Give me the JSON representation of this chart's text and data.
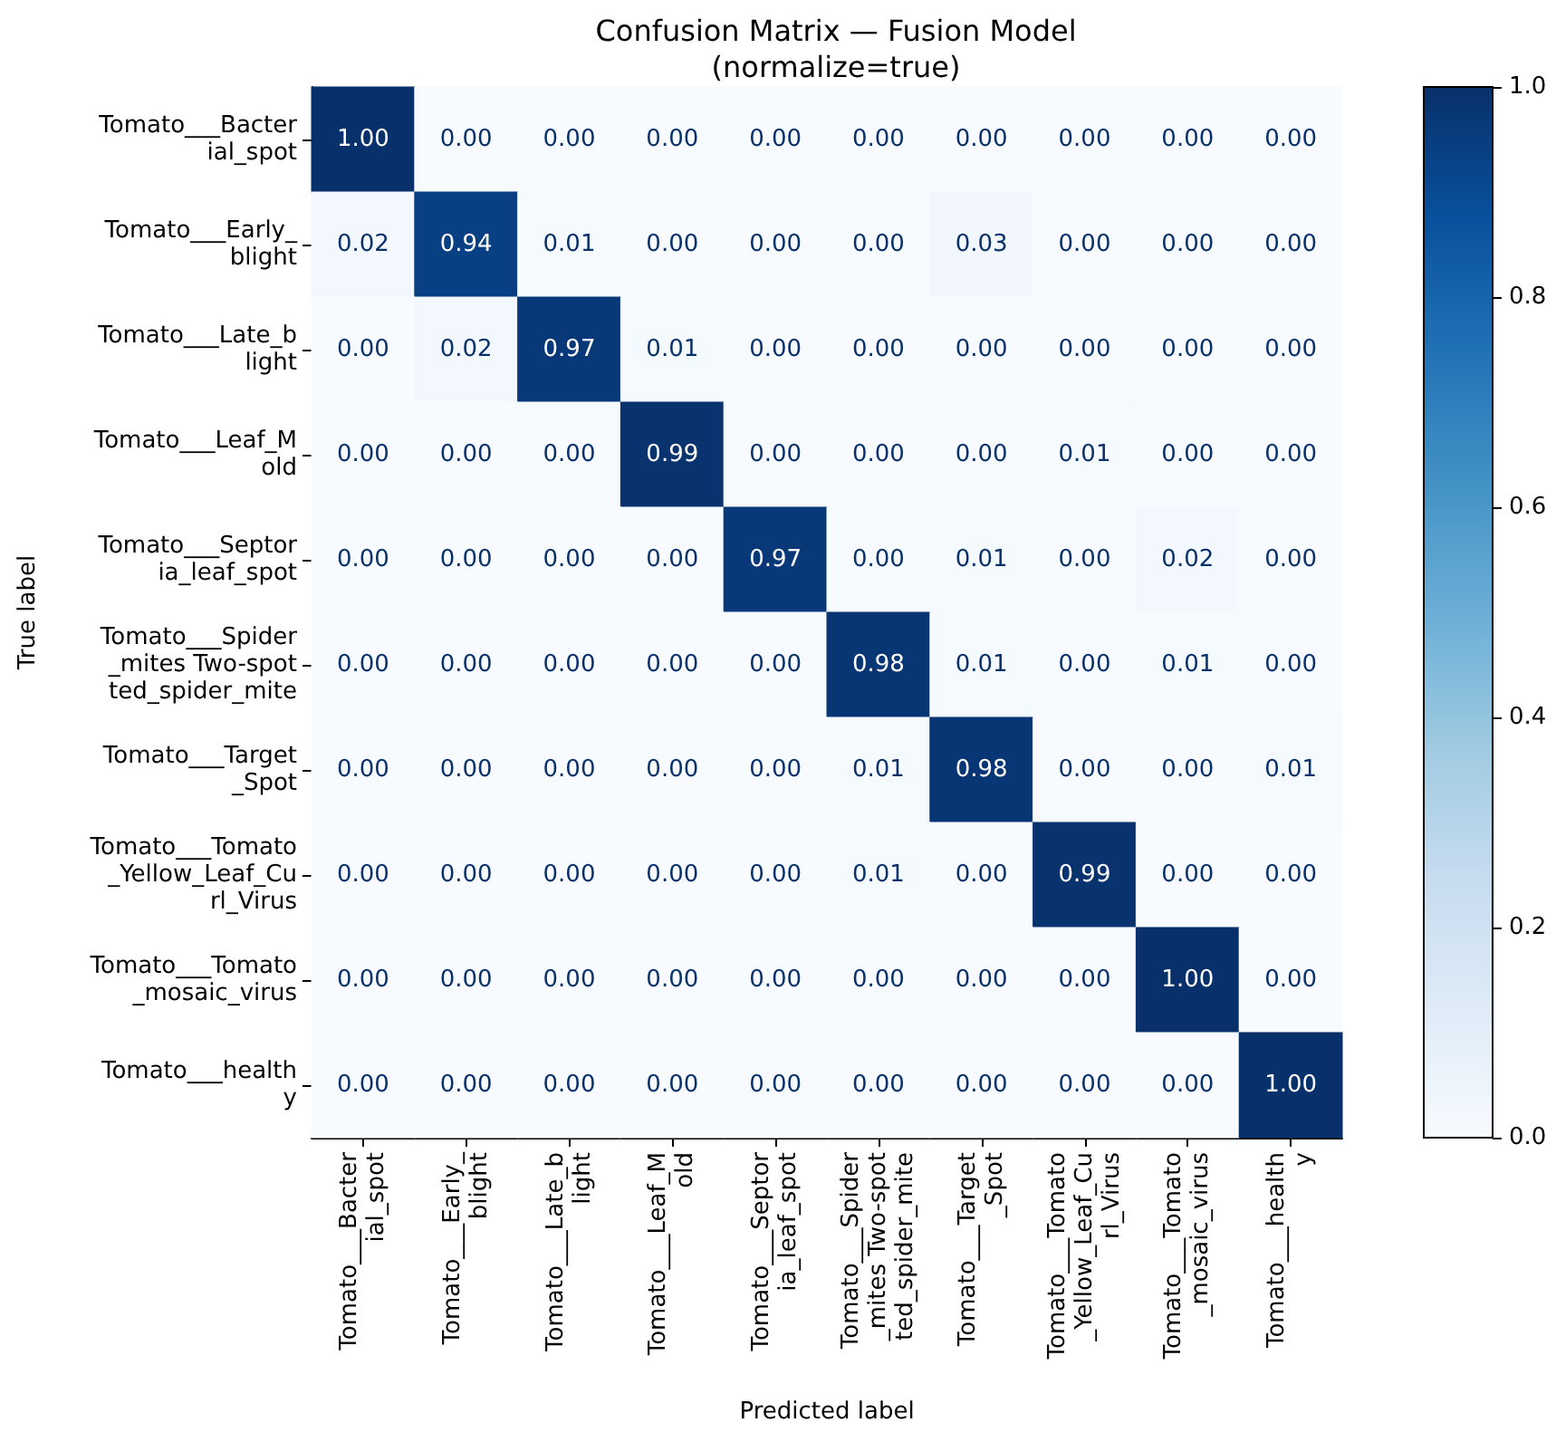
{
  "chart_data": {
    "type": "heatmap",
    "title": "Confusion Matrix — Fusion Model\n(normalize=true)",
    "xlabel": "Predicted label",
    "ylabel": "True label",
    "categories": [
      "Tomato___Bacter\nial_spot",
      "Tomato___Early_\nblight",
      "Tomato___Late_b\nlight",
      "Tomato___Leaf_M\nold",
      "Tomato___Septor\nia_leaf_spot",
      "Tomato___Spider\n_mites Two-spot\nted_spider_mite",
      "Tomato___Target\n_Spot",
      "Tomato___Tomato\n_Yellow_Leaf_Cu\nrl_Virus",
      "Tomato___Tomato\n_mosaic_virus",
      "Tomato___health\ny"
    ],
    "y_categories": [
      "Tomato___Bacter\nial_spot",
      "Tomato___Early_\nblight",
      "Tomato___Late_b\nlight",
      "Tomato___Leaf_M\nold",
      "Tomato___Septor\nia_leaf_spot",
      "Tomato___Spider\n_mites Two-spot\nted_spider_mite",
      "Tomato___Target\n_Spot",
      "Tomato___Tomato\n_Yellow_Leaf_Cu\nrl_Virus",
      "Tomato___Tomato\n_mosaic_virus",
      "Tomato___health\ny"
    ],
    "cells": [
      [
        1.0,
        0,
        0,
        0,
        0,
        0,
        0,
        0,
        0,
        0
      ],
      [
        0.02,
        0.94,
        0.01,
        0,
        0,
        0,
        0.03,
        0,
        0,
        0
      ],
      [
        0,
        0.02,
        0.97,
        0.01,
        0,
        0,
        0,
        0,
        0,
        0
      ],
      [
        0,
        0,
        0,
        0.99,
        0,
        0,
        0,
        0.01,
        0,
        0
      ],
      [
        0,
        0,
        0,
        0,
        0.97,
        0,
        0.01,
        0,
        0.02,
        0
      ],
      [
        0,
        0,
        0,
        0,
        0,
        0.98,
        0.01,
        0,
        0.01,
        0
      ],
      [
        0,
        0,
        0,
        0,
        0,
        0.01,
        0.98,
        0,
        0,
        0.01
      ],
      [
        0,
        0,
        0,
        0,
        0,
        0.01,
        0,
        0.99,
        0,
        0
      ],
      [
        0,
        0,
        0,
        0,
        0,
        0,
        0,
        0,
        1.0,
        0
      ],
      [
        0,
        0,
        0,
        0,
        0,
        0,
        0,
        0,
        0,
        1.0
      ]
    ],
    "cell_labels": [
      [
        "1.00",
        "0.00",
        "0.00",
        "0.00",
        "0.00",
        "0.00",
        "0.00",
        "0.00",
        "0.00",
        "0.00"
      ],
      [
        "0.02",
        "0.94",
        "0.01",
        "0.00",
        "0.00",
        "0.00",
        "0.03",
        "0.00",
        "0.00",
        "0.00"
      ],
      [
        "0.00",
        "0.02",
        "0.97",
        "0.01",
        "0.00",
        "0.00",
        "0.00",
        "0.00",
        "0.00",
        "0.00"
      ],
      [
        "0.00",
        "0.00",
        "0.00",
        "0.99",
        "0.00",
        "0.00",
        "0.00",
        "0.01",
        "0.00",
        "0.00"
      ],
      [
        "0.00",
        "0.00",
        "0.00",
        "0.00",
        "0.97",
        "0.00",
        "0.01",
        "0.00",
        "0.02",
        "0.00"
      ],
      [
        "0.00",
        "0.00",
        "0.00",
        "0.00",
        "0.00",
        "0.98",
        "0.01",
        "0.00",
        "0.01",
        "0.00"
      ],
      [
        "0.00",
        "0.00",
        "0.00",
        "0.00",
        "0.00",
        "0.01",
        "0.98",
        "0.00",
        "0.00",
        "0.01"
      ],
      [
        "0.00",
        "0.00",
        "0.00",
        "0.00",
        "0.00",
        "0.01",
        "0.00",
        "0.99",
        "0.00",
        "0.00"
      ],
      [
        "0.00",
        "0.00",
        "0.00",
        "0.00",
        "0.00",
        "0.00",
        "0.00",
        "0.00",
        "1.00",
        "0.00"
      ],
      [
        "0.00",
        "0.00",
        "0.00",
        "0.00",
        "0.00",
        "0.00",
        "0.00",
        "0.00",
        "0.00",
        "1.00"
      ]
    ],
    "clim": [
      0,
      1
    ],
    "cticks": [
      {
        "value": 0,
        "label": "0.0"
      },
      {
        "value": 0.2,
        "label": "0.2"
      },
      {
        "value": 0.4,
        "label": "0.4"
      },
      {
        "value": 0.6,
        "label": "0.6"
      },
      {
        "value": 0.8,
        "label": "0.8"
      },
      {
        "value": 1,
        "label": "1.0"
      }
    ]
  }
}
